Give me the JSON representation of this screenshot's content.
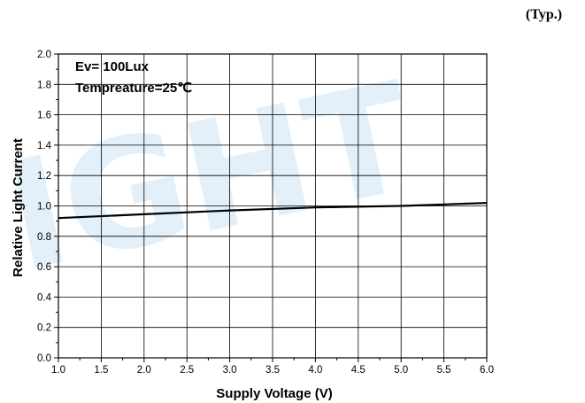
{
  "typ_note": "(Typ.)",
  "watermark_text": "IGHT",
  "colors": {
    "line": "#000000",
    "grid": "#000000",
    "watermark": "#4aa0dc"
  },
  "chart_data": {
    "type": "line",
    "title": "",
    "xlabel": "Supply Voltage (V)",
    "ylabel": "Relative Light Current",
    "xlim": [
      1.0,
      6.0
    ],
    "ylim": [
      0.0,
      2.0
    ],
    "xticks": [
      "1.0",
      "1.5",
      "2.0",
      "2.5",
      "3.0",
      "3.5",
      "4.0",
      "4.5",
      "5.0",
      "5.5",
      "6.0"
    ],
    "yticks": [
      "0.0",
      "0.2",
      "0.4",
      "0.6",
      "0.8",
      "1.0",
      "1.2",
      "1.4",
      "1.6",
      "1.8",
      "2.0"
    ],
    "grid": true,
    "annotations": [
      "Ev= 100Lux",
      "Tempreature=25℃"
    ],
    "series": [
      {
        "x": [
          1.0,
          2.0,
          3.0,
          4.0,
          5.0,
          6.0
        ],
        "y": [
          0.92,
          0.945,
          0.97,
          0.99,
          1.0,
          1.02
        ]
      }
    ]
  }
}
